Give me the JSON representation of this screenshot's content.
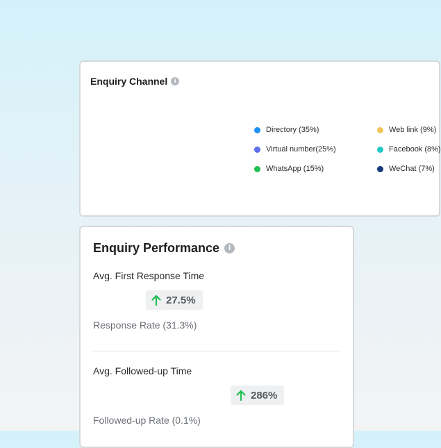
{
  "enquiry_channel": {
    "title": "Enquiry Channel",
    "legend": [
      {
        "label": "Directory (35%)",
        "color": "#1e90f0"
      },
      {
        "label": "Virtual number(25%)",
        "color": "#5b6de8"
      },
      {
        "label": "WhatsApp (15%)",
        "color": "#1fbf52"
      },
      {
        "label": "Web link (9%)",
        "color": "#f2c45a"
      },
      {
        "label": "Facebook (8%)",
        "color": "#22c9c4"
      },
      {
        "label": "WeChat (7%)",
        "color": "#163a7a"
      }
    ]
  },
  "enquiry_performance": {
    "title": "Enquiry Performance",
    "metrics": [
      {
        "label": "Avg. First Response Time",
        "change": "27.5%",
        "rate": "Response Rate (31.3%)"
      },
      {
        "label": "Avg. Followed-up Time",
        "change": "286%",
        "rate": "Followed-up Rate (0.1%)"
      }
    ],
    "arrow_color": "#1fbf52"
  }
}
